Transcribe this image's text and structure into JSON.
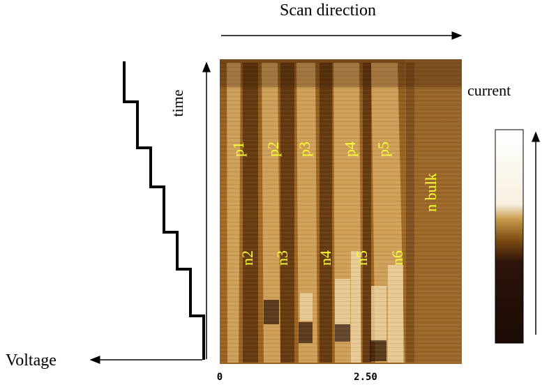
{
  "scan_direction": "Scan direction",
  "time_axis": "time",
  "voltage_axis": "Voltage",
  "current_label": "current",
  "p_regions": [
    "p1",
    "p2",
    "p3",
    "p4",
    "p5"
  ],
  "n_regions": [
    "n2",
    "n3",
    "n4",
    "n5",
    "n6"
  ],
  "bulk_label": "n bulk",
  "x_ticks": [
    "0",
    "2.50"
  ]
}
